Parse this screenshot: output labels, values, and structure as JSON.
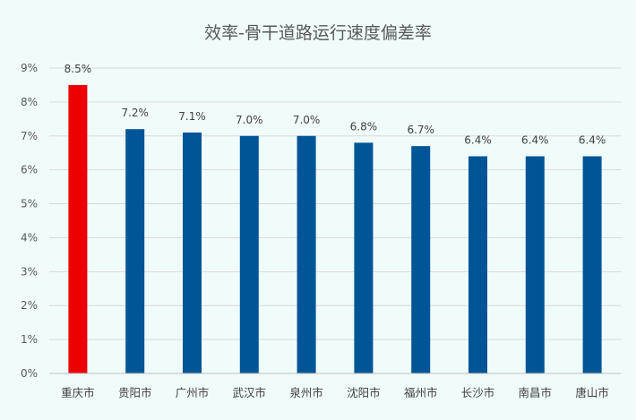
{
  "chart_data": {
    "type": "bar",
    "title": "效率-骨干道路运行速度偏差率",
    "categories": [
      "重庆市",
      "贵阳市",
      "广州市",
      "武汉市",
      "泉州市",
      "沈阳市",
      "福州市",
      "长沙市",
      "南昌市",
      "唐山市"
    ],
    "values": [
      8.5,
      7.2,
      7.1,
      7.0,
      7.0,
      6.8,
      6.7,
      6.4,
      6.4,
      6.4
    ],
    "data_labels": [
      "8.5%",
      "7.2%",
      "7.1%",
      "7.0%",
      "7.0%",
      "6.8%",
      "6.7%",
      "6.4%",
      "6.4%",
      "6.4%"
    ],
    "yticks": [
      "0%",
      "1%",
      "2%",
      "3%",
      "4%",
      "5%",
      "6%",
      "7%",
      "8%",
      "9%"
    ],
    "ylim": [
      0,
      9
    ],
    "grid": true,
    "legend": "none",
    "colors": {
      "default": "#005597",
      "highlight": "#ee0000",
      "highlight_index": 0
    }
  }
}
